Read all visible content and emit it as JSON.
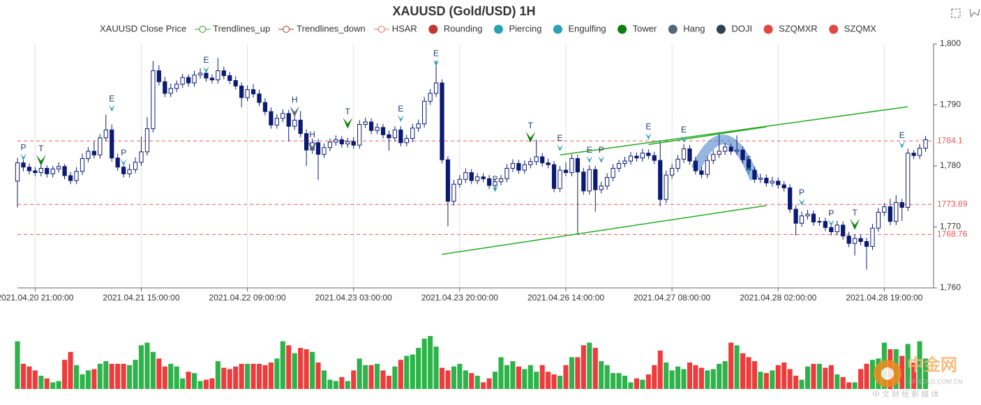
{
  "chart_data": {
    "type": "candlestick",
    "title": "XAUUSD (Gold/USD) 1H",
    "legend": [
      {
        "name": "XAUUSD Close Price"
      },
      {
        "name": "Trendlines_up",
        "color": "#22a022",
        "symbol": "line-circle"
      },
      {
        "name": "Trendlines_down",
        "color": "#a33a2a",
        "symbol": "line-circle"
      },
      {
        "name": "HSAR",
        "color": "#ee6a66",
        "symbol": "line-circle"
      },
      {
        "name": "Rounding",
        "color": "#c23531",
        "symbol": "circle"
      },
      {
        "name": "Piercing",
        "color": "#2aa2b2",
        "symbol": "circle"
      },
      {
        "name": "Engulfing",
        "color": "#2aa2b2",
        "symbol": "circle"
      },
      {
        "name": "Tower",
        "color": "#0e7f0e",
        "symbol": "circle"
      },
      {
        "name": "Hang",
        "color": "#556677",
        "symbol": "circle"
      },
      {
        "name": "DOJI",
        "color": "#2f4050",
        "symbol": "circle"
      },
      {
        "name": "SZQMXR",
        "color": "#e0473f",
        "symbol": "circle"
      },
      {
        "name": "SZQMX",
        "color": "#e0473f",
        "symbol": "circle"
      }
    ],
    "candle_color": "#0b1a73",
    "up_volume_color": "#2db34a",
    "down_volume_color": "#ee3b3b",
    "ylim": [
      1760,
      1800
    ],
    "yticks": [
      {
        "value": 1760,
        "label": "1,760"
      },
      {
        "value": 1770,
        "label": "1,770"
      },
      {
        "value": 1780,
        "label": "1,780"
      },
      {
        "value": 1790,
        "label": "1,790"
      },
      {
        "value": 1800,
        "label": "1,800"
      }
    ],
    "xlim": [
      0,
      155
    ],
    "xticks": [
      {
        "value": 3,
        "label": "2021.04.20 21:00:00"
      },
      {
        "value": 21,
        "label": "2021.04.21 15:00:00"
      },
      {
        "value": 39,
        "label": "2021.04.22 09:00:00"
      },
      {
        "value": 57,
        "label": "2021.04.23 03:00:00"
      },
      {
        "value": 75,
        "label": "2021.04.23 20:00:00"
      },
      {
        "value": 93,
        "label": "2021.04.26 14:00:00"
      },
      {
        "value": 111,
        "label": "2021.04.27 08:00:00"
      },
      {
        "value": 129,
        "label": "2021.04.28 02:00:00"
      },
      {
        "value": 147,
        "label": "2021.04.28 19:00:00"
      }
    ],
    "open": [
      1777.5,
      1780.5,
      1779.8,
      1779.2,
      1778.9,
      1779.6,
      1778.7,
      1779.5,
      1779.9,
      1778.4,
      1777.6,
      1779.1,
      1781.2,
      1782.4,
      1781.8,
      1784.6,
      1785.9,
      1781.3,
      1779.8,
      1778.7,
      1779.4,
      1780.6,
      1782.3,
      1786.1,
      1795.6,
      1793.8,
      1791.9,
      1792.7,
      1793.4,
      1794.5,
      1793.6,
      1794.9,
      1795.2,
      1794.4,
      1794.1,
      1795.6,
      1794.8,
      1794.0,
      1793.1,
      1791.2,
      1792.5,
      1791.8,
      1790.4,
      1788.9,
      1786.7,
      1787.8,
      1788.6,
      1786.5,
      1787.5,
      1785.3,
      1782.6,
      1783.8,
      1781.9,
      1783.0,
      1783.9,
      1784.3,
      1783.6,
      1784.0,
      1783.4,
      1786.8,
      1787.2,
      1785.8,
      1786.3,
      1785.1,
      1784.6,
      1785.9,
      1783.8,
      1784.5,
      1786.2,
      1786.9,
      1790.6,
      1791.9,
      1793.6,
      1781.0,
      1774.2,
      1777.0,
      1777.8,
      1778.9,
      1777.6,
      1778.2,
      1777.9,
      1776.8,
      1777.4,
      1777.9,
      1779.6,
      1780.4,
      1779.3,
      1780.2,
      1780.7,
      1781.5,
      1780.5,
      1780.2,
      1776.3,
      1779.3,
      1778.9,
      1781.2,
      1779.0,
      1775.9,
      1779.4,
      1776.1,
      1776.7,
      1778.1,
      1779.6,
      1780.4,
      1780.8,
      1781.6,
      1781.3,
      1782.1,
      1781.7,
      1780.9,
      1774.5,
      1778.5,
      1779.6,
      1781.1,
      1782.8,
      1780.8,
      1779.2,
      1778.6,
      1780.9,
      1781.9,
      1782.4,
      1783.1,
      1782.4,
      1782.6,
      1781.0,
      1779.3,
      1777.8,
      1778.0,
      1777.2,
      1777.5,
      1776.9,
      1776.4,
      1772.9,
      1770.6,
      1771.8,
      1772.1,
      1770.8,
      1770.9,
      1769.9,
      1769.2,
      1770.3,
      1768.5,
      1767.3,
      1768.1,
      1767.6,
      1766.8,
      1769.8,
      1772.4,
      1773.3,
      1770.9,
      1774.0,
      1773.2,
      1782.1,
      1781.7,
      1782.9
    ],
    "high": [
      1781.3,
      1781.0,
      1780.4,
      1779.8,
      1780.2,
      1780.1,
      1780.0,
      1780.6,
      1780.3,
      1779.0,
      1779.8,
      1782.0,
      1783.1,
      1784.0,
      1785.2,
      1788.4,
      1786.8,
      1782.0,
      1780.5,
      1780.3,
      1781.4,
      1784.8,
      1788.0,
      1797.2,
      1796.5,
      1794.6,
      1793.5,
      1794.0,
      1795.1,
      1795.0,
      1795.6,
      1796.0,
      1795.8,
      1795.0,
      1797.7,
      1796.3,
      1795.4,
      1794.7,
      1793.7,
      1793.2,
      1793.4,
      1792.5,
      1791.1,
      1789.6,
      1788.5,
      1789.3,
      1789.2,
      1788.3,
      1789.0,
      1786.0,
      1784.5,
      1784.4,
      1783.7,
      1784.5,
      1785.0,
      1784.9,
      1784.6,
      1784.7,
      1787.5,
      1787.9,
      1787.8,
      1787.0,
      1786.9,
      1785.8,
      1786.5,
      1786.5,
      1785.1,
      1786.9,
      1787.6,
      1791.3,
      1792.6,
      1797.3,
      1794.2,
      1781.6,
      1777.7,
      1778.5,
      1779.6,
      1779.5,
      1778.8,
      1778.8,
      1778.5,
      1778.0,
      1778.5,
      1780.3,
      1781.1,
      1781.0,
      1780.9,
      1781.3,
      1784.3,
      1782.1,
      1781.2,
      1780.8,
      1780.0,
      1780.6,
      1781.9,
      1781.8,
      1779.7,
      1780.1,
      1780.0,
      1777.4,
      1778.8,
      1780.3,
      1781.0,
      1781.5,
      1782.3,
      1782.2,
      1782.8,
      1782.7,
      1782.3,
      1784.2,
      1779.2,
      1780.3,
      1781.8,
      1783.6,
      1783.4,
      1781.5,
      1779.9,
      1781.6,
      1782.6,
      1785.5,
      1783.8,
      1783.7,
      1785.0,
      1783.2,
      1781.7,
      1779.9,
      1778.7,
      1778.6,
      1778.2,
      1778.1,
      1777.5,
      1777.0,
      1773.5,
      1772.5,
      1772.8,
      1772.7,
      1771.6,
      1771.5,
      1770.5,
      1771.0,
      1770.9,
      1769.2,
      1768.8,
      1768.7,
      1768.2,
      1770.5,
      1773.1,
      1773.9,
      1774.6,
      1775.2,
      1774.6,
      1782.8,
      1782.6,
      1783.6,
      1784.9
    ],
    "low": [
      1773.2,
      1779.1,
      1778.6,
      1778.3,
      1778.3,
      1778.1,
      1778.1,
      1778.9,
      1777.8,
      1777.0,
      1777.0,
      1778.5,
      1780.6,
      1781.2,
      1781.2,
      1784.0,
      1780.7,
      1779.2,
      1778.1,
      1778.1,
      1778.8,
      1780.0,
      1781.7,
      1785.5,
      1793.2,
      1791.3,
      1791.3,
      1792.1,
      1792.8,
      1793.0,
      1793.0,
      1794.3,
      1793.8,
      1793.5,
      1793.5,
      1794.2,
      1793.4,
      1792.5,
      1789.6,
      1790.6,
      1791.2,
      1789.8,
      1788.3,
      1786.1,
      1786.1,
      1787.2,
      1784.0,
      1785.9,
      1784.7,
      1780.0,
      1782.0,
      1777.7,
      1781.3,
      1782.4,
      1783.3,
      1783.0,
      1783.0,
      1782.8,
      1782.8,
      1786.2,
      1785.2,
      1785.2,
      1784.5,
      1782.5,
      1784.0,
      1783.2,
      1783.2,
      1783.9,
      1785.6,
      1786.3,
      1790.0,
      1791.3,
      1780.4,
      1770.1,
      1773.5,
      1776.4,
      1777.2,
      1777.0,
      1777.0,
      1777.3,
      1776.2,
      1776.2,
      1776.8,
      1777.3,
      1779.0,
      1778.7,
      1778.7,
      1779.6,
      1780.1,
      1779.9,
      1779.6,
      1775.7,
      1775.7,
      1778.3,
      1778.3,
      1768.8,
      1775.3,
      1775.3,
      1772.5,
      1775.5,
      1776.1,
      1777.5,
      1779.0,
      1779.8,
      1780.2,
      1780.7,
      1780.7,
      1781.1,
      1780.3,
      1773.4,
      1773.9,
      1777.9,
      1779.0,
      1780.5,
      1780.2,
      1778.6,
      1778.0,
      1778.0,
      1780.3,
      1781.3,
      1781.8,
      1781.8,
      1781.8,
      1780.4,
      1778.7,
      1777.2,
      1777.2,
      1776.6,
      1776.6,
      1776.3,
      1775.8,
      1772.3,
      1768.6,
      1770.0,
      1771.2,
      1770.2,
      1770.2,
      1769.3,
      1768.6,
      1768.6,
      1767.9,
      1766.7,
      1765.3,
      1767.0,
      1763.0,
      1766.2,
      1769.2,
      1771.8,
      1770.3,
      1770.3,
      1771.0,
      1772.6,
      1781.1,
      1781.1,
      1782.3
    ],
    "close": [
      1780.5,
      1779.8,
      1779.2,
      1778.9,
      1779.6,
      1778.7,
      1779.5,
      1779.9,
      1778.4,
      1777.6,
      1779.1,
      1781.2,
      1782.4,
      1781.8,
      1784.6,
      1785.9,
      1781.3,
      1779.8,
      1778.7,
      1779.4,
      1780.6,
      1782.3,
      1786.1,
      1795.6,
      1793.8,
      1791.9,
      1792.7,
      1793.4,
      1794.5,
      1793.6,
      1794.9,
      1795.2,
      1794.4,
      1794.1,
      1795.6,
      1794.8,
      1794.0,
      1793.1,
      1791.2,
      1792.5,
      1791.8,
      1790.4,
      1788.9,
      1786.7,
      1787.8,
      1788.6,
      1786.5,
      1787.5,
      1785.3,
      1782.6,
      1783.8,
      1781.9,
      1783.0,
      1783.9,
      1784.3,
      1783.6,
      1784.0,
      1783.4,
      1786.8,
      1787.2,
      1785.8,
      1786.3,
      1785.1,
      1784.6,
      1785.9,
      1783.8,
      1784.5,
      1786.2,
      1786.9,
      1790.6,
      1791.9,
      1793.6,
      1781.0,
      1774.2,
      1777.0,
      1777.8,
      1778.9,
      1777.6,
      1778.2,
      1777.9,
      1776.8,
      1777.4,
      1777.9,
      1779.6,
      1780.4,
      1779.3,
      1780.2,
      1780.7,
      1781.5,
      1780.5,
      1780.2,
      1776.3,
      1779.3,
      1778.9,
      1781.2,
      1779.0,
      1775.9,
      1779.4,
      1776.1,
      1776.7,
      1778.1,
      1779.6,
      1780.4,
      1780.8,
      1781.6,
      1781.3,
      1782.1,
      1781.7,
      1780.9,
      1774.5,
      1778.5,
      1779.6,
      1781.1,
      1782.8,
      1780.8,
      1779.2,
      1778.6,
      1780.9,
      1781.9,
      1782.4,
      1783.1,
      1782.4,
      1782.6,
      1781.0,
      1779.3,
      1777.8,
      1778.0,
      1777.2,
      1777.5,
      1776.9,
      1776.4,
      1772.9,
      1770.6,
      1771.8,
      1772.1,
      1770.8,
      1770.9,
      1769.9,
      1769.2,
      1770.3,
      1768.5,
      1767.3,
      1768.1,
      1767.6,
      1766.8,
      1769.8,
      1772.4,
      1773.3,
      1770.9,
      1774.0,
      1773.2,
      1782.1,
      1781.7,
      1782.9,
      1784.3
    ],
    "volume": [
      72,
      38,
      34,
      28,
      20,
      16,
      10,
      12,
      44,
      56,
      36,
      22,
      28,
      30,
      38,
      42,
      38,
      38,
      38,
      36,
      44,
      66,
      70,
      56,
      46,
      34,
      38,
      34,
      16,
      26,
      24,
      12,
      14,
      16,
      42,
      32,
      30,
      34,
      38,
      38,
      38,
      38,
      36,
      40,
      46,
      72,
      66,
      54,
      62,
      60,
      56,
      40,
      28,
      14,
      12,
      18,
      12,
      28,
      46,
      36,
      36,
      38,
      28,
      20,
      34,
      44,
      50,
      52,
      62,
      76,
      80,
      64,
      32,
      28,
      34,
      38,
      28,
      24,
      20,
      10,
      16,
      26,
      48,
      36,
      42,
      34,
      30,
      36,
      26,
      36,
      26,
      22,
      20,
      36,
      48,
      48,
      66,
      70,
      62,
      42,
      36,
      24,
      24,
      20,
      10,
      16,
      14,
      22,
      36,
      58,
      40,
      28,
      34,
      30,
      40,
      36,
      32,
      28,
      30,
      38,
      42,
      70,
      66,
      54,
      48,
      42,
      26,
      24,
      28,
      36,
      40,
      30,
      20,
      14,
      34,
      38,
      38,
      32,
      36,
      22,
      18,
      10,
      10,
      30,
      38,
      44,
      46,
      70,
      60,
      60,
      50,
      68,
      40,
      72,
      46
    ],
    "hlines": [
      1784.1,
      1773.69,
      1768.76
    ],
    "hline_color": "#e8575a",
    "trendlines": [
      {
        "color": "#22aa22",
        "points": [
          [
            92,
            1781.8
          ],
          [
            151,
            1789.7
          ]
        ]
      },
      {
        "color": "#22aa22",
        "points": [
          [
            107,
            1783.5
          ],
          [
            127,
            1786.4
          ]
        ]
      },
      {
        "color": "#22aa22",
        "points": [
          [
            72,
            1765.5
          ],
          [
            127,
            1773.5
          ]
        ]
      }
    ],
    "rounding": {
      "color": "#5b8fd0",
      "points": [
        [
          115,
          1779.5
        ],
        [
          120,
          1784.3
        ],
        [
          125,
          1777.9
        ]
      ]
    },
    "markers": [
      {
        "label": "P",
        "index": 1,
        "value": 1780.9,
        "color": "#2aa2b2"
      },
      {
        "label": "T",
        "index": 4,
        "value": 1780.0,
        "color": "#0e7f0e"
      },
      {
        "label": "E",
        "index": 16,
        "value": 1788.9,
        "color": "#2aa2b2"
      },
      {
        "label": "P",
        "index": 18,
        "value": 1780.0,
        "color": "#2aa2b2"
      },
      {
        "label": "E",
        "index": 32,
        "value": 1795.2,
        "color": "#2aa2b2"
      },
      {
        "label": "H",
        "index": 47,
        "value": 1788.0,
        "color": "#556677"
      },
      {
        "label": "H",
        "index": 50,
        "value": 1782.3,
        "color": "#556677"
      },
      {
        "label": "T",
        "index": 56,
        "value": 1786.1,
        "color": "#0e7f0e"
      },
      {
        "label": "E",
        "index": 65,
        "value": 1787.2,
        "color": "#2aa2b2"
      },
      {
        "label": "E",
        "index": 71,
        "value": 1796.3,
        "color": "#2aa2b2"
      },
      {
        "label": "P",
        "index": 81,
        "value": 1775.7,
        "color": "#2aa2b2"
      },
      {
        "label": "T",
        "index": 87,
        "value": 1783.8,
        "color": "#0e7f0e"
      },
      {
        "label": "E",
        "index": 92,
        "value": 1782.4,
        "color": "#2aa2b2"
      },
      {
        "label": "E",
        "index": 97,
        "value": 1780.5,
        "color": "#2aa2b2"
      },
      {
        "label": "P",
        "index": 99,
        "value": 1780.5,
        "color": "#2aa2b2"
      },
      {
        "label": "E",
        "index": 107,
        "value": 1784.3,
        "color": "#2aa2b2"
      },
      {
        "label": "E",
        "index": 113,
        "value": 1783.8,
        "color": "#2aa2b2"
      },
      {
        "label": "E",
        "index": 124,
        "value": 1778.9,
        "color": "#2aa2b2"
      },
      {
        "label": "P",
        "index": 133,
        "value": 1773.5,
        "color": "#2aa2b2"
      },
      {
        "label": "P",
        "index": 138,
        "value": 1770.1,
        "color": "#2aa2b2"
      },
      {
        "label": "T",
        "index": 142,
        "value": 1769.5,
        "color": "#0e7f0e"
      },
      {
        "label": "E",
        "index": 150,
        "value": 1782.9,
        "color": "#2aa2b2"
      }
    ],
    "watermark": {
      "brand": "中金网",
      "site": "CNGOLD.COM.CN",
      "slogan": "中 文 财 经 新 媒 体"
    }
  }
}
